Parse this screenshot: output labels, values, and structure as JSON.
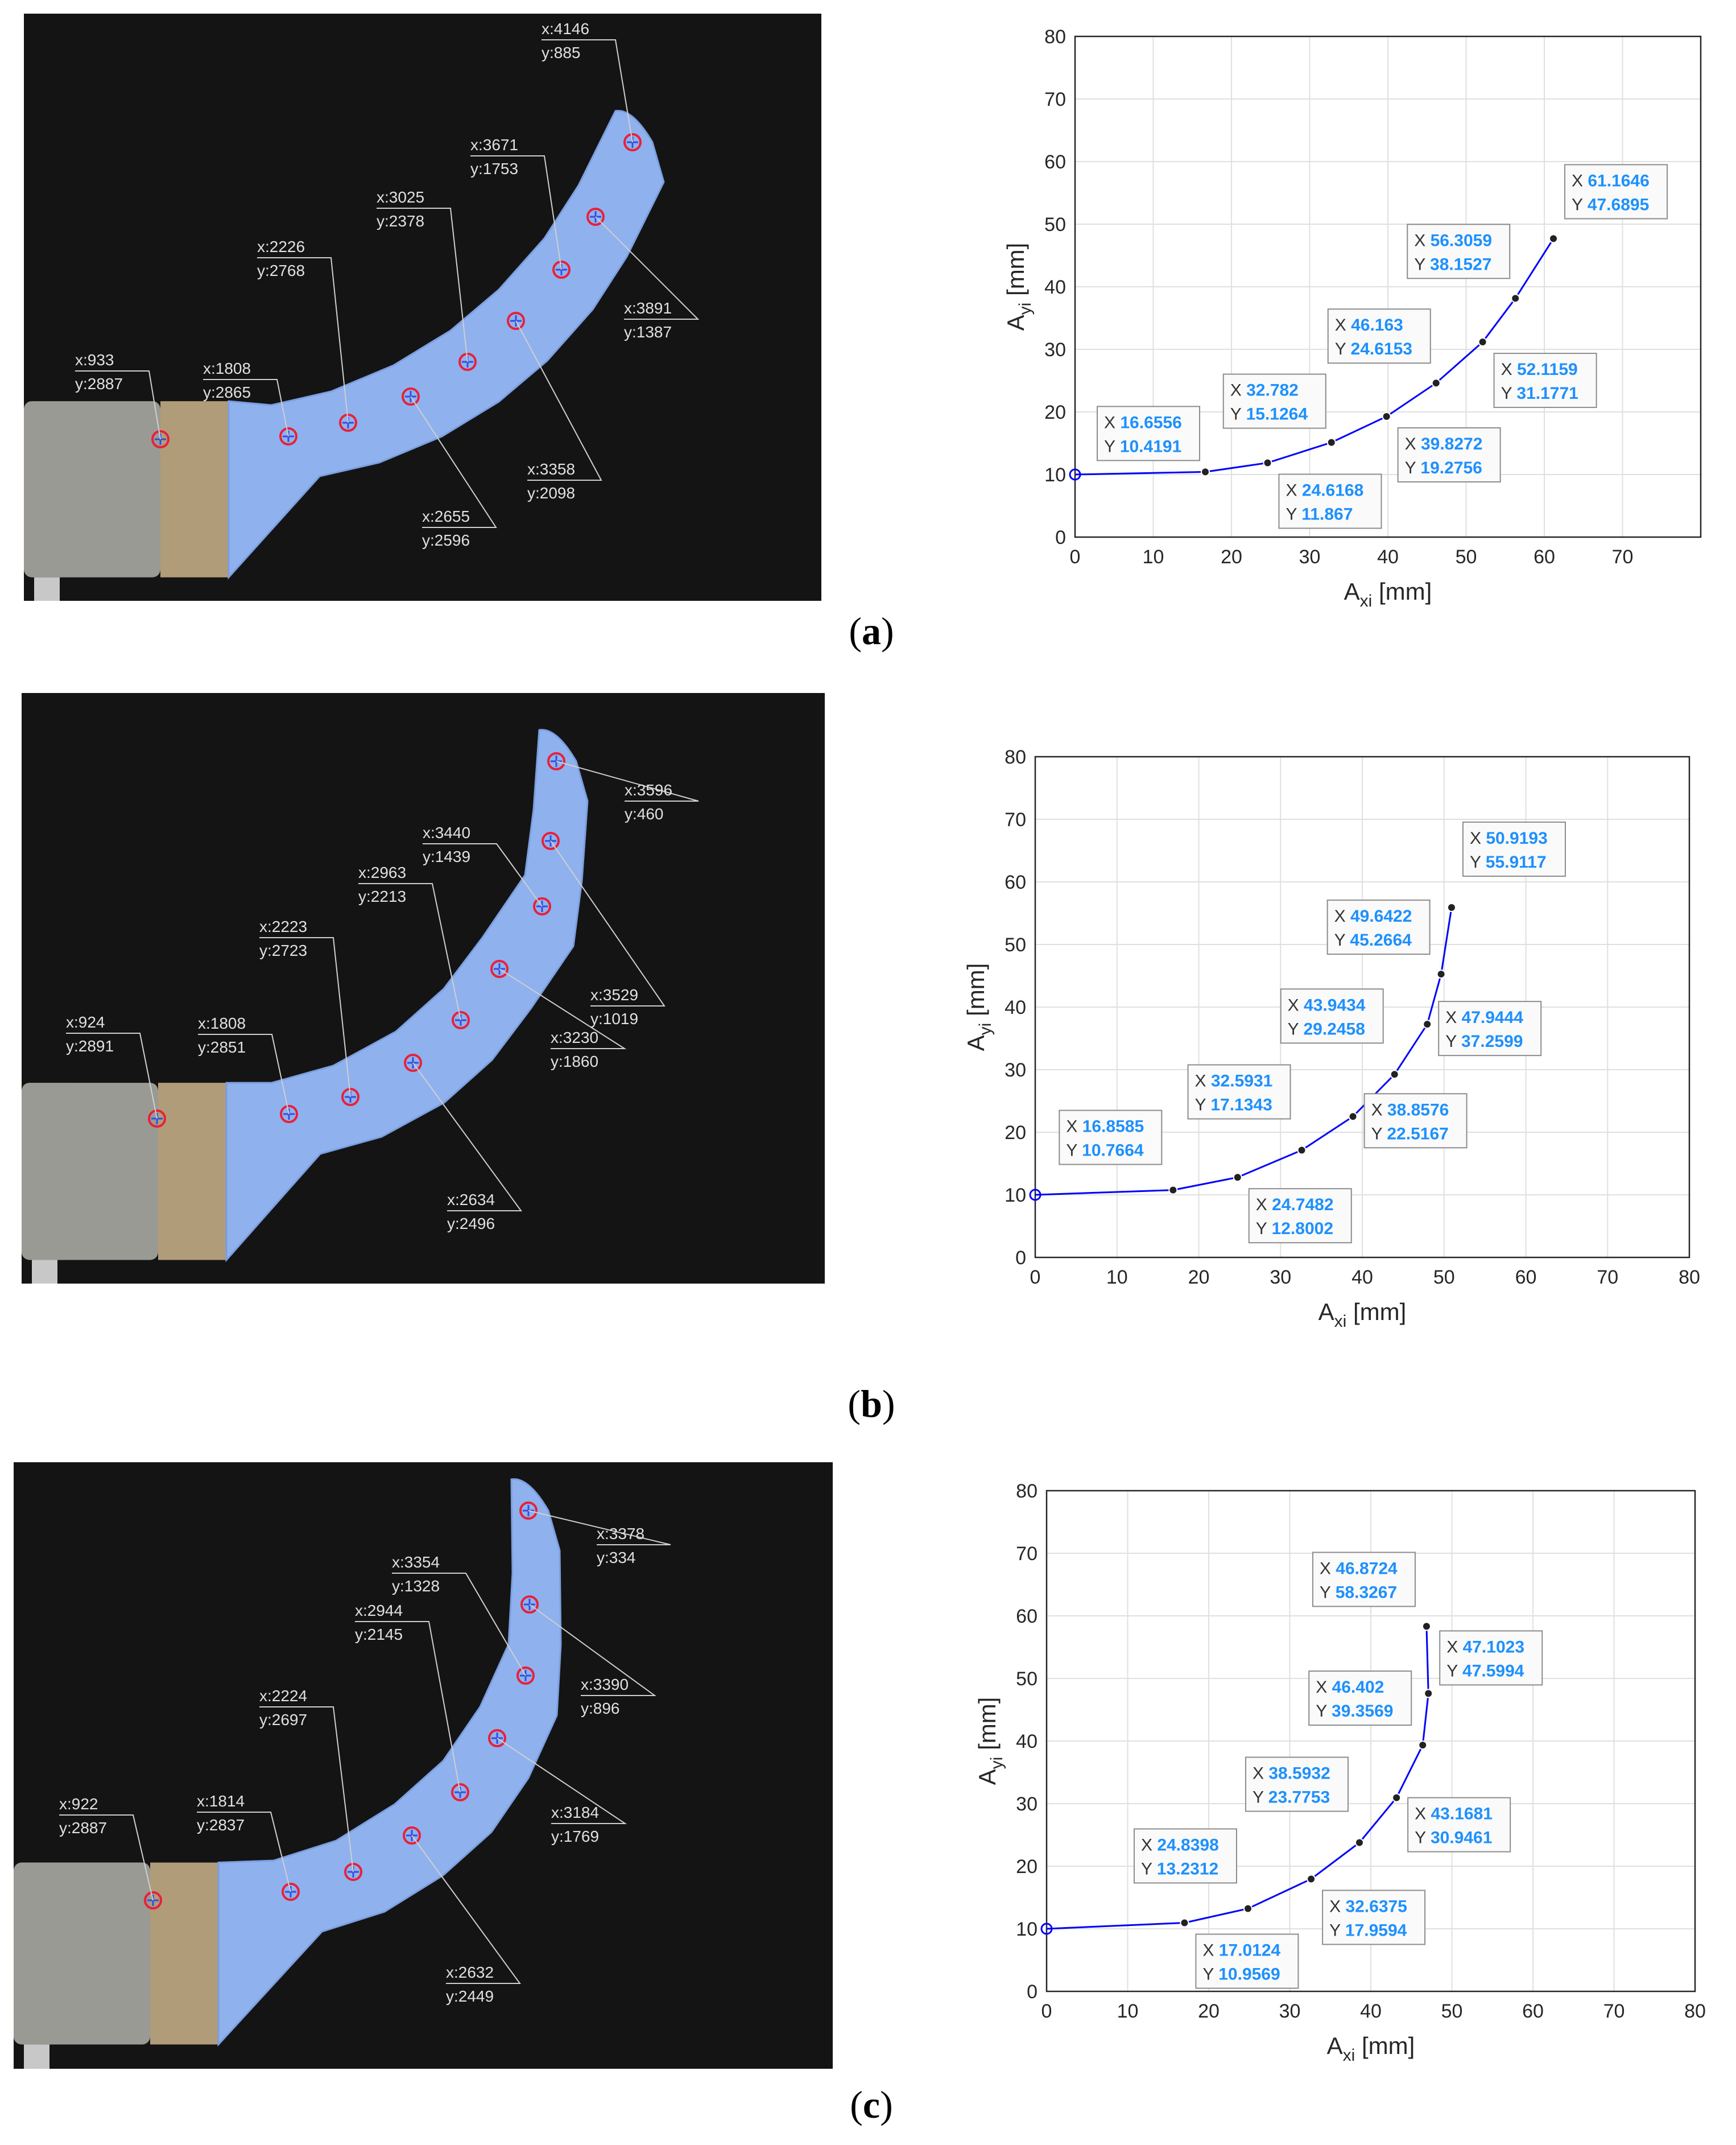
{
  "panels": [
    {
      "caption_open": "(",
      "caption_letter": "a",
      "caption_close": ")",
      "photo": {
        "markers": [
          {
            "x": 933,
            "y": 2887
          },
          {
            "x": 1808,
            "y": 2865
          },
          {
            "x": 2226,
            "y": 2768
          },
          {
            "x": 2655,
            "y": 2596
          },
          {
            "x": 3025,
            "y": 2378
          },
          {
            "x": 3358,
            "y": 2098
          },
          {
            "x": 3671,
            "y": 1753
          },
          {
            "x": 3891,
            "y": 1387
          },
          {
            "x": 4146,
            "y": 885
          }
        ]
      },
      "chart_data": {
        "type": "line",
        "xlabel": "A",
        "xlabel_sub": "xi",
        "xlabel_unit": " [mm]",
        "ylabel": "A",
        "ylabel_sub": "yi",
        "ylabel_unit": " [mm]",
        "xlim": [
          0,
          80
        ],
        "ylim": [
          0,
          80
        ],
        "xticks": [
          0,
          10,
          20,
          30,
          40,
          50,
          60,
          70
        ],
        "yticks": [
          0,
          10,
          20,
          30,
          40,
          50,
          60,
          70,
          80
        ],
        "grid": true,
        "line_color": "#0000ff",
        "label_color": "#1e90ff",
        "points": [
          {
            "x": 0,
            "y": 10
          },
          {
            "x": 16.6556,
            "y": 10.4191,
            "xl": "16.6556",
            "yl": "10.4191"
          },
          {
            "x": 24.6168,
            "y": 11.867,
            "xl": "24.6168",
            "yl": "11.867"
          },
          {
            "x": 32.782,
            "y": 15.1264,
            "xl": "32.782",
            "yl": "15.1264"
          },
          {
            "x": 39.8272,
            "y": 19.2756,
            "xl": "39.8272",
            "yl": "19.2756"
          },
          {
            "x": 46.163,
            "y": 24.6153,
            "xl": "46.163",
            "yl": "24.6153"
          },
          {
            "x": 52.1159,
            "y": 31.1771,
            "xl": "52.1159",
            "yl": "31.1771"
          },
          {
            "x": 56.3059,
            "y": 38.1527,
            "xl": "56.3059",
            "yl": "38.1527"
          },
          {
            "x": 61.1646,
            "y": 47.6895,
            "xl": "61.1646",
            "yl": "47.6895"
          }
        ]
      }
    },
    {
      "caption_open": "(",
      "caption_letter": "b",
      "caption_close": ")",
      "photo": {
        "markers": [
          {
            "x": 924,
            "y": 2891
          },
          {
            "x": 1808,
            "y": 2851
          },
          {
            "x": 2223,
            "y": 2723
          },
          {
            "x": 2634,
            "y": 2496
          },
          {
            "x": 2963,
            "y": 2213
          },
          {
            "x": 3230,
            "y": 1860
          },
          {
            "x": 3440,
            "y": 1439
          },
          {
            "x": 3529,
            "y": 1019
          },
          {
            "x": 3596,
            "y": 460
          }
        ]
      },
      "chart_data": {
        "type": "line",
        "xlabel": "A",
        "xlabel_sub": "xi",
        "xlabel_unit": " [mm]",
        "ylabel": "A",
        "ylabel_sub": "yi",
        "ylabel_unit": " [mm]",
        "xlim": [
          0,
          80
        ],
        "ylim": [
          0,
          80
        ],
        "xticks": [
          0,
          10,
          20,
          30,
          40,
          50,
          60,
          70,
          80
        ],
        "yticks": [
          0,
          10,
          20,
          30,
          40,
          50,
          60,
          70,
          80
        ],
        "grid": true,
        "line_color": "#0000ff",
        "label_color": "#1e90ff",
        "points": [
          {
            "x": 0,
            "y": 10
          },
          {
            "x": 16.8585,
            "y": 10.7664,
            "xl": "16.8585",
            "yl": "10.7664"
          },
          {
            "x": 24.7482,
            "y": 12.8002,
            "xl": "24.7482",
            "yl": "12.8002"
          },
          {
            "x": 32.5931,
            "y": 17.1343,
            "xl": "32.5931",
            "yl": "17.1343"
          },
          {
            "x": 38.8576,
            "y": 22.5167,
            "xl": "38.8576",
            "yl": "22.5167"
          },
          {
            "x": 43.9434,
            "y": 29.2458,
            "xl": "43.9434",
            "yl": "29.2458"
          },
          {
            "x": 47.9444,
            "y": 37.2599,
            "xl": "47.9444",
            "yl": "37.2599"
          },
          {
            "x": 49.6422,
            "y": 45.2664,
            "xl": "49.6422",
            "yl": "45.2664"
          },
          {
            "x": 50.9193,
            "y": 55.9117,
            "xl": "50.9193",
            "yl": "55.9117"
          }
        ]
      }
    },
    {
      "caption_open": "(",
      "caption_letter": "c",
      "caption_close": ")",
      "photo": {
        "markers": [
          {
            "x": 922,
            "y": 2887
          },
          {
            "x": 1814,
            "y": 2837
          },
          {
            "x": 2224,
            "y": 2697
          },
          {
            "x": 2632,
            "y": 2449
          },
          {
            "x": 2944,
            "y": 2145
          },
          {
            "x": 3184,
            "y": 1769
          },
          {
            "x": 3354,
            "y": 1328
          },
          {
            "x": 3390,
            "y": 896
          },
          {
            "x": 3378,
            "y": 334
          }
        ]
      },
      "chart_data": {
        "type": "line",
        "xlabel": "A",
        "xlabel_sub": "xi",
        "xlabel_unit": " [mm]",
        "ylabel": "A",
        "ylabel_sub": "yi",
        "ylabel_unit": " [mm]",
        "xlim": [
          0,
          80
        ],
        "ylim": [
          0,
          80
        ],
        "xticks": [
          0,
          10,
          20,
          30,
          40,
          50,
          60,
          70,
          80
        ],
        "yticks": [
          0,
          10,
          20,
          30,
          40,
          50,
          60,
          70,
          80
        ],
        "grid": true,
        "line_color": "#0000ff",
        "label_color": "#1e90ff",
        "points": [
          {
            "x": 0,
            "y": 10
          },
          {
            "x": 17.0124,
            "y": 10.9569,
            "xl": "17.0124",
            "yl": "10.9569"
          },
          {
            "x": 24.8398,
            "y": 13.2312,
            "xl": "24.8398",
            "yl": "13.2312"
          },
          {
            "x": 32.6375,
            "y": 17.9594,
            "xl": "32.6375",
            "yl": "17.9594"
          },
          {
            "x": 38.5932,
            "y": 23.7753,
            "xl": "38.5932",
            "yl": "23.7753"
          },
          {
            "x": 43.1681,
            "y": 30.9461,
            "xl": "43.1681",
            "yl": "30.9461"
          },
          {
            "x": 46.402,
            "y": 39.3569,
            "xl": "46.402",
            "yl": "39.3569"
          },
          {
            "x": 47.1023,
            "y": 47.5994,
            "xl": "47.1023",
            "yl": "47.5994"
          },
          {
            "x": 46.8724,
            "y": 58.3267,
            "xl": "46.8724",
            "yl": "58.3267"
          }
        ]
      }
    }
  ],
  "datatip_x_prefix": "X",
  "datatip_y_prefix": "Y",
  "marker_x_prefix": "x:",
  "marker_y_prefix": "y:"
}
